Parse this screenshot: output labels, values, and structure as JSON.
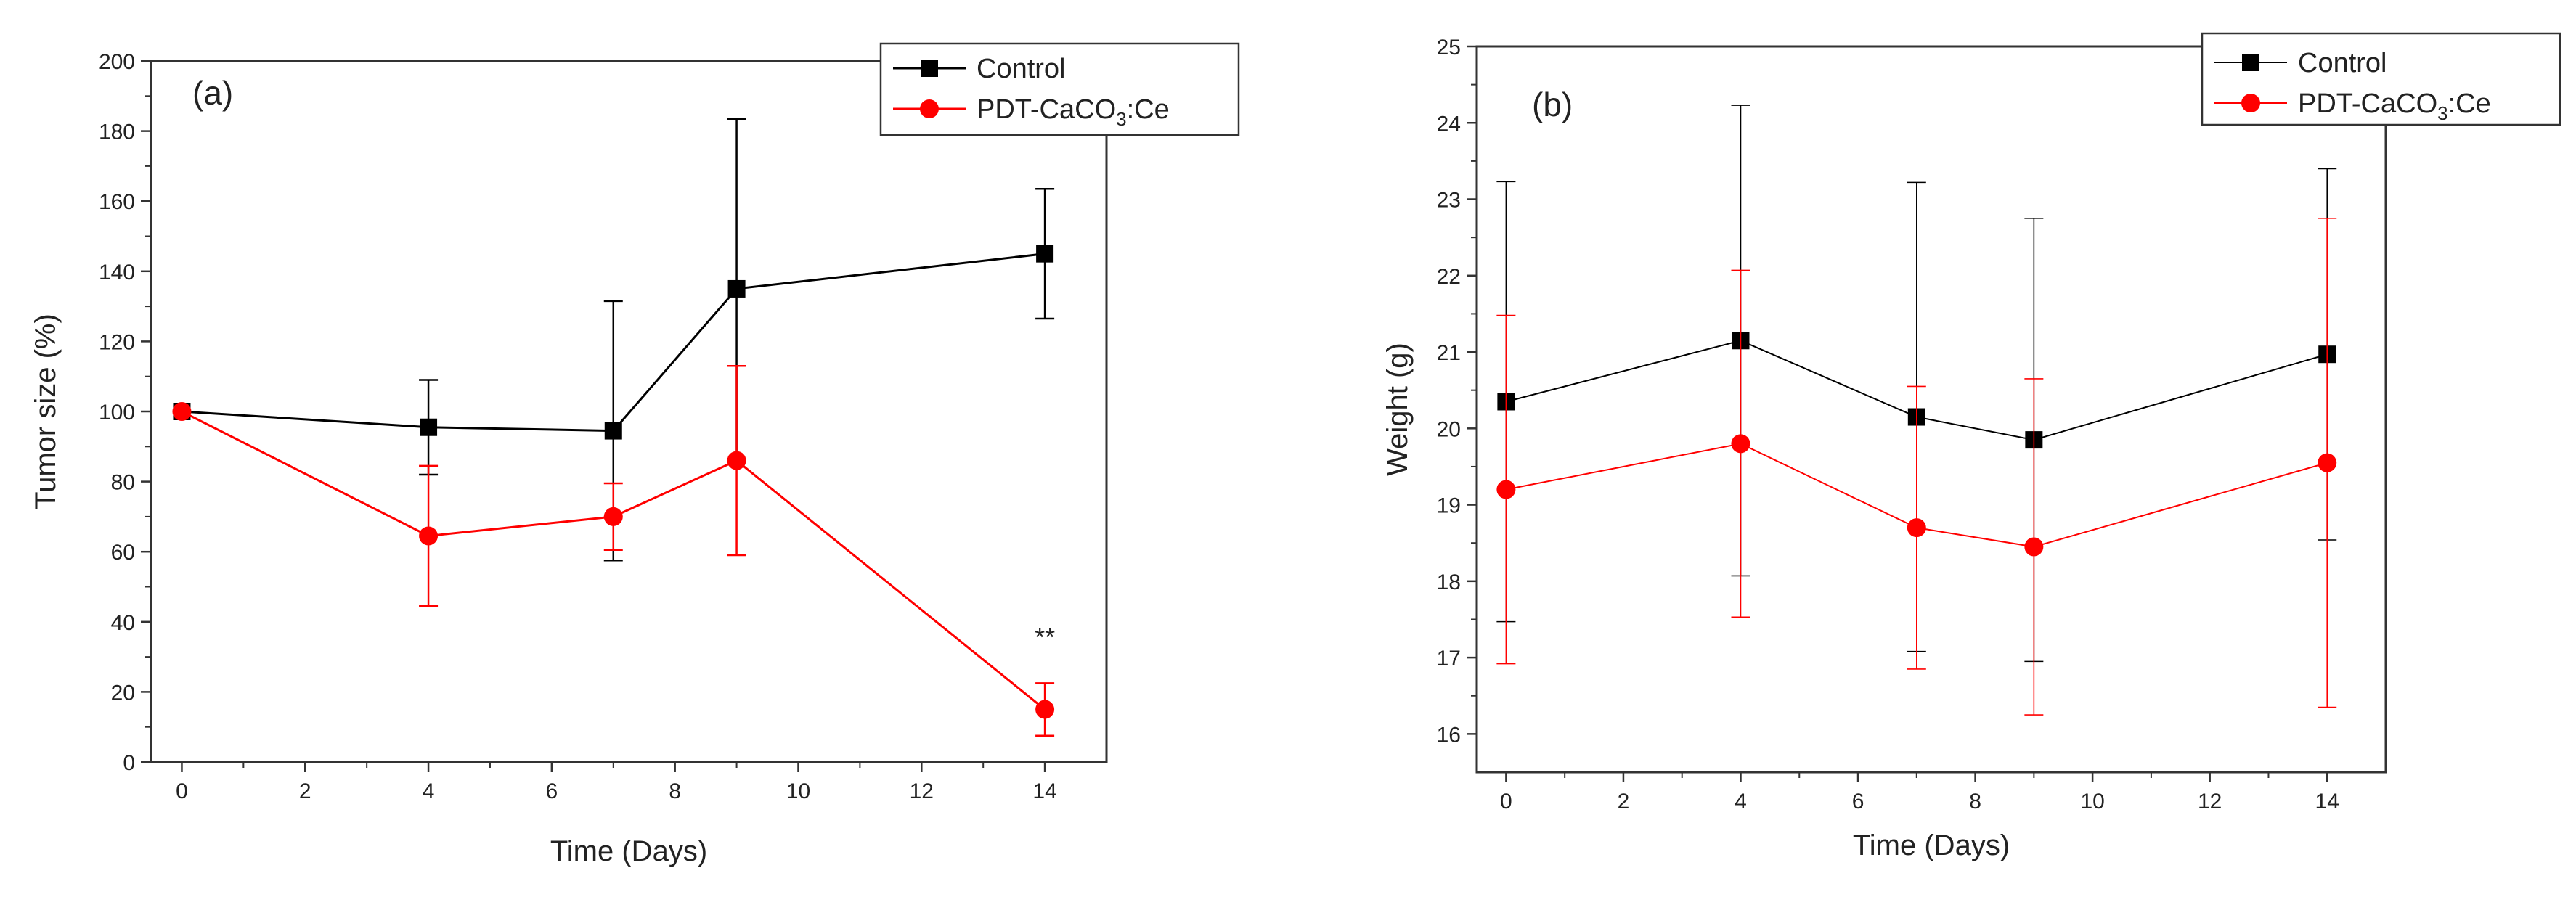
{
  "chart_data": [
    {
      "type": "line",
      "panel_label": "(a)",
      "xlabel": "Time (Days)",
      "ylabel": "Tumor size (%)",
      "xlim": [
        -0.5,
        15
      ],
      "ylim": [
        0,
        200
      ],
      "x_ticks": [
        0,
        2,
        4,
        6,
        8,
        10,
        12,
        14
      ],
      "y_ticks": [
        0,
        20,
        40,
        60,
        80,
        100,
        120,
        140,
        160,
        180,
        200
      ],
      "legend_position": "top-right",
      "series": [
        {
          "name": "Control",
          "legend_main": "Control",
          "legend_sub": "",
          "legend_tail": "",
          "color": "#000000",
          "marker": "square",
          "x": [
            0,
            4,
            7,
            9,
            14
          ],
          "values": [
            100,
            95.5,
            94.5,
            135,
            145
          ],
          "errors": [
            0,
            13.5,
            37,
            48.5,
            18.5
          ]
        },
        {
          "name": "PDT-CaCO3:Ce",
          "legend_main": "PDT-CaCO",
          "legend_sub": "3",
          "legend_tail": ":Ce",
          "color": "#ff0000",
          "marker": "circle",
          "x": [
            0,
            4,
            7,
            9,
            14
          ],
          "values": [
            100,
            64.5,
            70,
            86,
            15
          ],
          "errors": [
            0,
            20,
            9.5,
            27,
            7.5
          ]
        }
      ],
      "annotations": [
        {
          "text": "**",
          "x": 14,
          "y": 33
        }
      ]
    },
    {
      "type": "line",
      "panel_label": "(b)",
      "xlabel": "Time (Days)",
      "ylabel": "Weight (g)",
      "xlim": [
        -0.5,
        15
      ],
      "ylim": [
        15.5,
        25
      ],
      "x_ticks": [
        0,
        2,
        4,
        6,
        8,
        10,
        12,
        14
      ],
      "y_ticks": [
        16,
        17,
        18,
        19,
        20,
        21,
        22,
        23,
        24,
        25
      ],
      "legend_position": "top-right",
      "series": [
        {
          "name": "Control",
          "legend_main": "Control",
          "legend_sub": "",
          "legend_tail": "",
          "color": "#000000",
          "marker": "square",
          "x": [
            0,
            4,
            7,
            9,
            14
          ],
          "values": [
            20.35,
            21.15,
            20.15,
            19.85,
            20.97
          ],
          "errors": [
            2.88,
            3.08,
            3.07,
            2.9,
            2.43
          ]
        },
        {
          "name": "PDT-CaCO3:Ce",
          "legend_main": "PDT-CaCO",
          "legend_sub": "3",
          "legend_tail": ":Ce",
          "color": "#ff0000",
          "marker": "circle",
          "x": [
            0,
            4,
            7,
            9,
            14
          ],
          "values": [
            19.2,
            19.8,
            18.7,
            18.45,
            19.55
          ],
          "errors": [
            2.28,
            2.27,
            1.85,
            2.2,
            3.2
          ]
        }
      ],
      "annotations": []
    }
  ]
}
